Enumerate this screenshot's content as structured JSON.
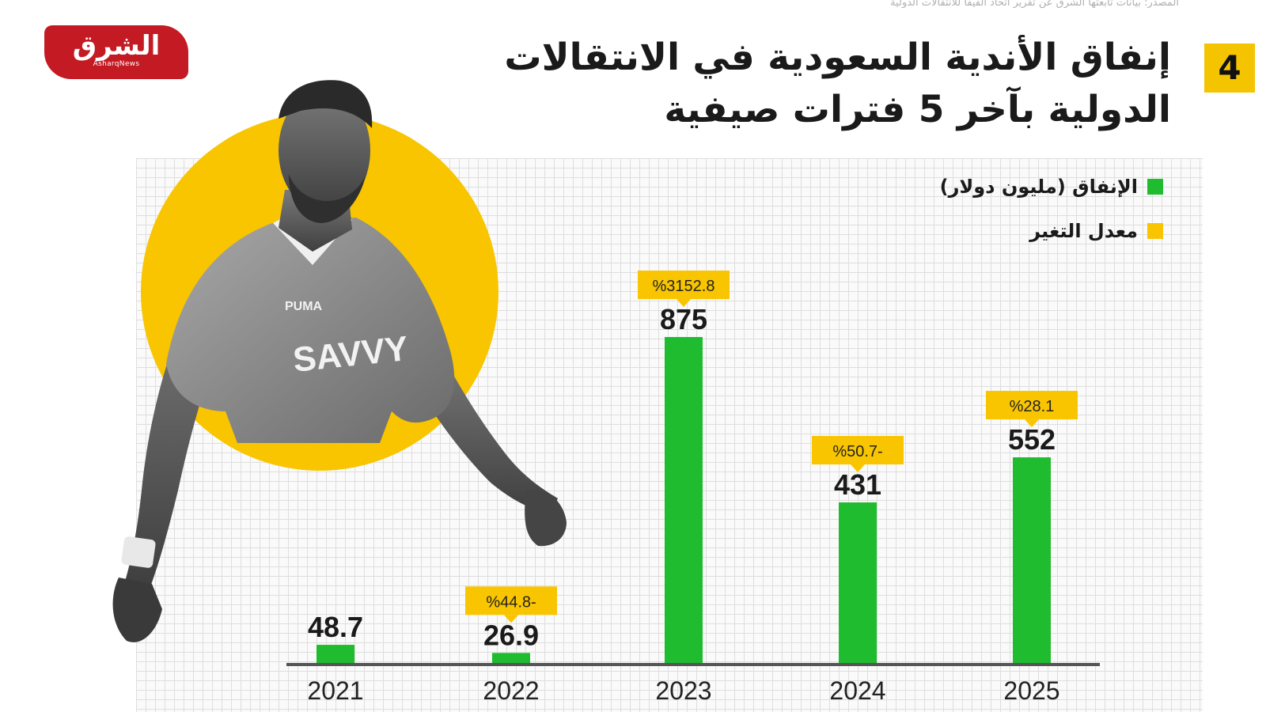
{
  "source_text": "المصدر: بيانات تابعتها الشرق عن تقرير اتحاد الفيفا للانتقالات الدولية",
  "brand": {
    "name_ar": "الشرق",
    "name_en": "AsharqNews",
    "color": "#c31a23"
  },
  "slide_number": "4",
  "title_lines": [
    "إنفاق الأندية السعودية في الانتقالات",
    "الدولية بآخر 5 فترات صيفية"
  ],
  "legend": [
    {
      "label": "الإنفاق (مليون دولار)",
      "color": "#1ebc2e"
    },
    {
      "label": "معدل التغير",
      "color": "#f8c500"
    }
  ],
  "chart_data": {
    "type": "bar",
    "categories": [
      "2021",
      "2022",
      "2023",
      "2024",
      "2025"
    ],
    "series": [
      {
        "name": "الإنفاق (مليون دولار)",
        "values": [
          48.7,
          26.9,
          875,
          431,
          552
        ],
        "labels": [
          "48.7",
          "26.9",
          "875",
          "431",
          "552"
        ]
      }
    ],
    "change_labels": [
      "",
      "%44.8-",
      "%3152.8",
      "%50.7-",
      "%28.1"
    ],
    "ylim": [
      0,
      875
    ],
    "grid": true,
    "legend_position": "top-right",
    "colors": {
      "bar": "#1ebc2e",
      "change_tag": "#f8c500",
      "axis": "#555555"
    }
  }
}
